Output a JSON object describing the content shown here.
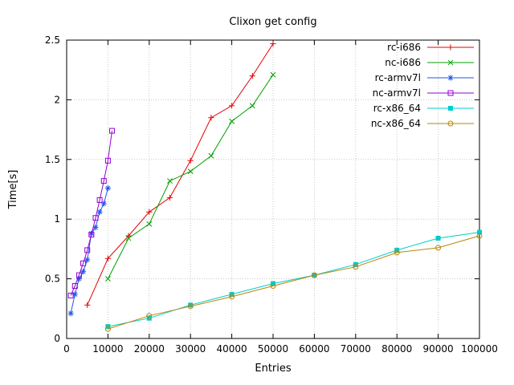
{
  "chart_data": {
    "type": "line",
    "title": "Clixon get config",
    "xlabel": "Entries",
    "ylabel": "Time[s]",
    "xlim": [
      0,
      100000
    ],
    "ylim": [
      0,
      2.5
    ],
    "xticks": [
      0,
      10000,
      20000,
      30000,
      40000,
      50000,
      60000,
      70000,
      80000,
      90000,
      100000
    ],
    "yticks": [
      0,
      0.5,
      1,
      1.5,
      2,
      2.5
    ],
    "grid": true,
    "legend_position": "top-right",
    "series": [
      {
        "name": "rc-i686",
        "color": "#e60000",
        "marker": "plus",
        "points": [
          [
            5000,
            0.28
          ],
          [
            10000,
            0.67
          ],
          [
            15000,
            0.86
          ],
          [
            20000,
            1.06
          ],
          [
            25000,
            1.18
          ],
          [
            30000,
            1.49
          ],
          [
            35000,
            1.85
          ],
          [
            40000,
            1.95
          ],
          [
            45000,
            2.2
          ],
          [
            50000,
            2.47
          ]
        ]
      },
      {
        "name": "nc-i686",
        "color": "#00a000",
        "marker": "cross",
        "points": [
          [
            10000,
            0.5
          ],
          [
            15000,
            0.84
          ],
          [
            20000,
            0.96
          ],
          [
            25000,
            1.32
          ],
          [
            30000,
            1.4
          ],
          [
            35000,
            1.53
          ],
          [
            40000,
            1.82
          ],
          [
            45000,
            1.95
          ],
          [
            50000,
            2.21
          ]
        ]
      },
      {
        "name": "rc-armv7l",
        "color": "#2255ee",
        "marker": "asterisk",
        "points": [
          [
            1000,
            0.21
          ],
          [
            2000,
            0.37
          ],
          [
            3000,
            0.5
          ],
          [
            4000,
            0.56
          ],
          [
            5000,
            0.66
          ],
          [
            6000,
            0.88
          ],
          [
            7000,
            0.93
          ],
          [
            8000,
            1.06
          ],
          [
            9000,
            1.13
          ],
          [
            10000,
            1.26
          ]
        ]
      },
      {
        "name": "nc-armv7l",
        "color": "#9400d3",
        "marker": "square-open",
        "points": [
          [
            1000,
            0.36
          ],
          [
            2000,
            0.44
          ],
          [
            3000,
            0.53
          ],
          [
            4000,
            0.63
          ],
          [
            5000,
            0.74
          ],
          [
            6000,
            0.87
          ],
          [
            7000,
            1.01
          ],
          [
            8000,
            1.16
          ],
          [
            9000,
            1.32
          ],
          [
            10000,
            1.49
          ],
          [
            11000,
            1.74
          ]
        ]
      },
      {
        "name": "rc-x86_64",
        "color": "#00cccc",
        "marker": "square-filled",
        "points": [
          [
            10000,
            0.1
          ],
          [
            20000,
            0.17
          ],
          [
            30000,
            0.28
          ],
          [
            40000,
            0.37
          ],
          [
            50000,
            0.46
          ],
          [
            60000,
            0.53
          ],
          [
            70000,
            0.62
          ],
          [
            80000,
            0.74
          ],
          [
            90000,
            0.84
          ],
          [
            100000,
            0.89
          ]
        ]
      },
      {
        "name": "nc-x86_64",
        "color": "#b8860b",
        "marker": "circle-open",
        "points": [
          [
            10000,
            0.08
          ],
          [
            20000,
            0.19
          ],
          [
            30000,
            0.27
          ],
          [
            40000,
            0.35
          ],
          [
            50000,
            0.44
          ],
          [
            60000,
            0.53
          ],
          [
            70000,
            0.6
          ],
          [
            80000,
            0.72
          ],
          [
            90000,
            0.76
          ],
          [
            100000,
            0.86
          ]
        ]
      }
    ]
  }
}
